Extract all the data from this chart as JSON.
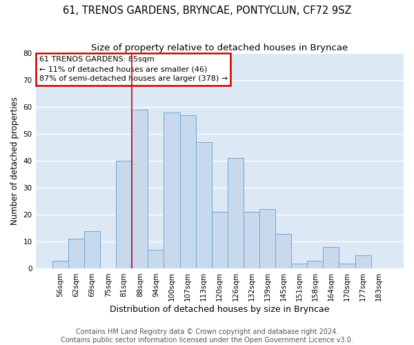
{
  "title": "61, TRENOS GARDENS, BRYNCAE, PONTYCLUN, CF72 9SZ",
  "subtitle": "Size of property relative to detached houses in Bryncae",
  "xlabel": "Distribution of detached houses by size in Bryncae",
  "ylabel": "Number of detached properties",
  "bar_labels": [
    "56sqm",
    "62sqm",
    "69sqm",
    "75sqm",
    "81sqm",
    "88sqm",
    "94sqm",
    "100sqm",
    "107sqm",
    "113sqm",
    "120sqm",
    "126sqm",
    "132sqm",
    "139sqm",
    "145sqm",
    "151sqm",
    "158sqm",
    "164sqm",
    "170sqm",
    "177sqm",
    "183sqm"
  ],
  "bar_values": [
    3,
    11,
    14,
    0,
    40,
    59,
    7,
    58,
    57,
    47,
    21,
    41,
    21,
    22,
    13,
    2,
    3,
    8,
    2,
    5,
    0
  ],
  "bar_color": "#c8d9ee",
  "bar_edge_color": "#6aaad4",
  "annotation_box_text": "61 TRENOS GARDENS: 85sqm\n← 11% of detached houses are smaller (46)\n87% of semi-detached houses are larger (378) →",
  "annotation_box_color": "#ffffff",
  "annotation_box_edge_color": "#cc0000",
  "vline_x": 4.5,
  "vline_color": "#cc0000",
  "ylim": [
    0,
    80
  ],
  "yticks": [
    0,
    10,
    20,
    30,
    40,
    50,
    60,
    70,
    80
  ],
  "footer_line1": "Contains HM Land Registry data © Crown copyright and database right 2024.",
  "footer_line2": "Contains public sector information licensed under the Open Government Licence v3.0.",
  "fig_bg_color": "#ffffff",
  "plot_bg_color": "#dce9f5",
  "grid_color": "#ffffff",
  "title_fontsize": 10.5,
  "subtitle_fontsize": 9.5,
  "axis_label_fontsize": 9,
  "tick_fontsize": 7.5,
  "footer_fontsize": 7,
  "ylabel_fontsize": 8.5
}
